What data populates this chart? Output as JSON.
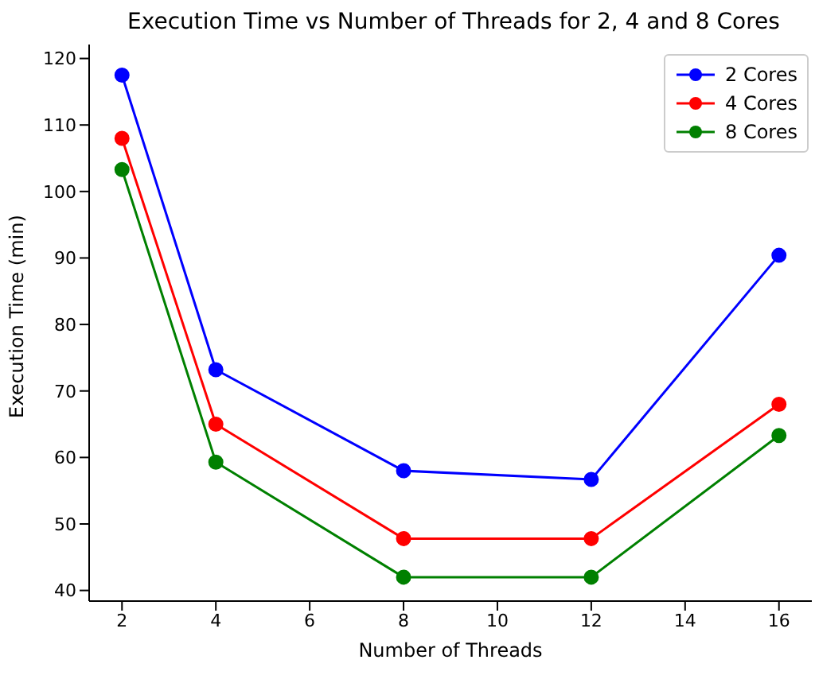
{
  "chart_data": {
    "type": "line",
    "title": "Execution Time vs Number of Threads for 2, 4 and 8 Cores",
    "xlabel": "Number of Threads",
    "ylabel": "Execution Time (min)",
    "x": [
      2,
      4,
      8,
      12,
      16
    ],
    "series": [
      {
        "name": "2 Cores",
        "color": "#0000ff",
        "values": [
          117.5,
          73.2,
          58,
          56.7,
          90.4
        ]
      },
      {
        "name": "4 Cores",
        "color": "#ff0000",
        "values": [
          108,
          65,
          47.8,
          47.8,
          68
        ]
      },
      {
        "name": "8 Cores",
        "color": "#008000",
        "values": [
          103.3,
          59.3,
          42,
          42,
          63.3
        ]
      }
    ],
    "xlim": [
      1.3,
      16.7
    ],
    "xticks": [
      2,
      4,
      6,
      8,
      10,
      12,
      14,
      16
    ],
    "ylim": [
      38.4,
      122.1
    ],
    "yticks": [
      40,
      50,
      60,
      70,
      80,
      90,
      100,
      110,
      120
    ],
    "grid": false,
    "legend": "top right",
    "marker": "circle",
    "line_style": "solid"
  }
}
